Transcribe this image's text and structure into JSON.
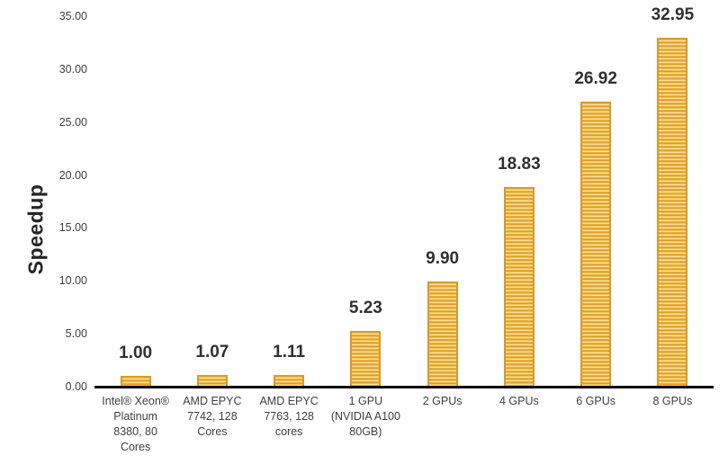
{
  "chart_data": {
    "type": "bar",
    "title": "",
    "xlabel": "",
    "ylabel": "Speedup",
    "categories": [
      "Intel® Xeon®\nPlatinum\n8380, 80\nCores",
      "AMD EPYC\n7742, 128\nCores",
      "AMD EPYC\n7763, 128\ncores",
      "1 GPU\n(NVIDIA A100\n80GB)",
      "2 GPUs",
      "4 GPUs",
      "6 GPUs",
      "8 GPUs"
    ],
    "values": [
      1.0,
      1.07,
      1.11,
      5.23,
      9.9,
      18.83,
      26.92,
      32.95
    ],
    "value_labels": [
      "1.00",
      "1.07",
      "1.11",
      "5.23",
      "9.90",
      "18.83",
      "26.92",
      "32.95"
    ],
    "ylim": [
      0,
      35
    ],
    "ytick_interval": 5,
    "ytick_labels": [
      "0.00",
      "5.00",
      "10.00",
      "15.00",
      "20.00",
      "25.00",
      "30.00",
      "35.00"
    ],
    "grid": false,
    "legend": "none",
    "bar_pattern": "horizontal-stripes",
    "colors": {
      "bar_stripe_dark": "#DD9E2B",
      "bar_stripe_mid": "#F3BF48",
      "bar_stripe_light": "#FBEDBF",
      "bar_border": "#D9992B",
      "axis_line": "#0d0d0d",
      "tick_text": "#404040",
      "category_text": "#404040",
      "value_text": "#303030",
      "axis_title_text": "#262626",
      "background": "#ffffff"
    }
  }
}
